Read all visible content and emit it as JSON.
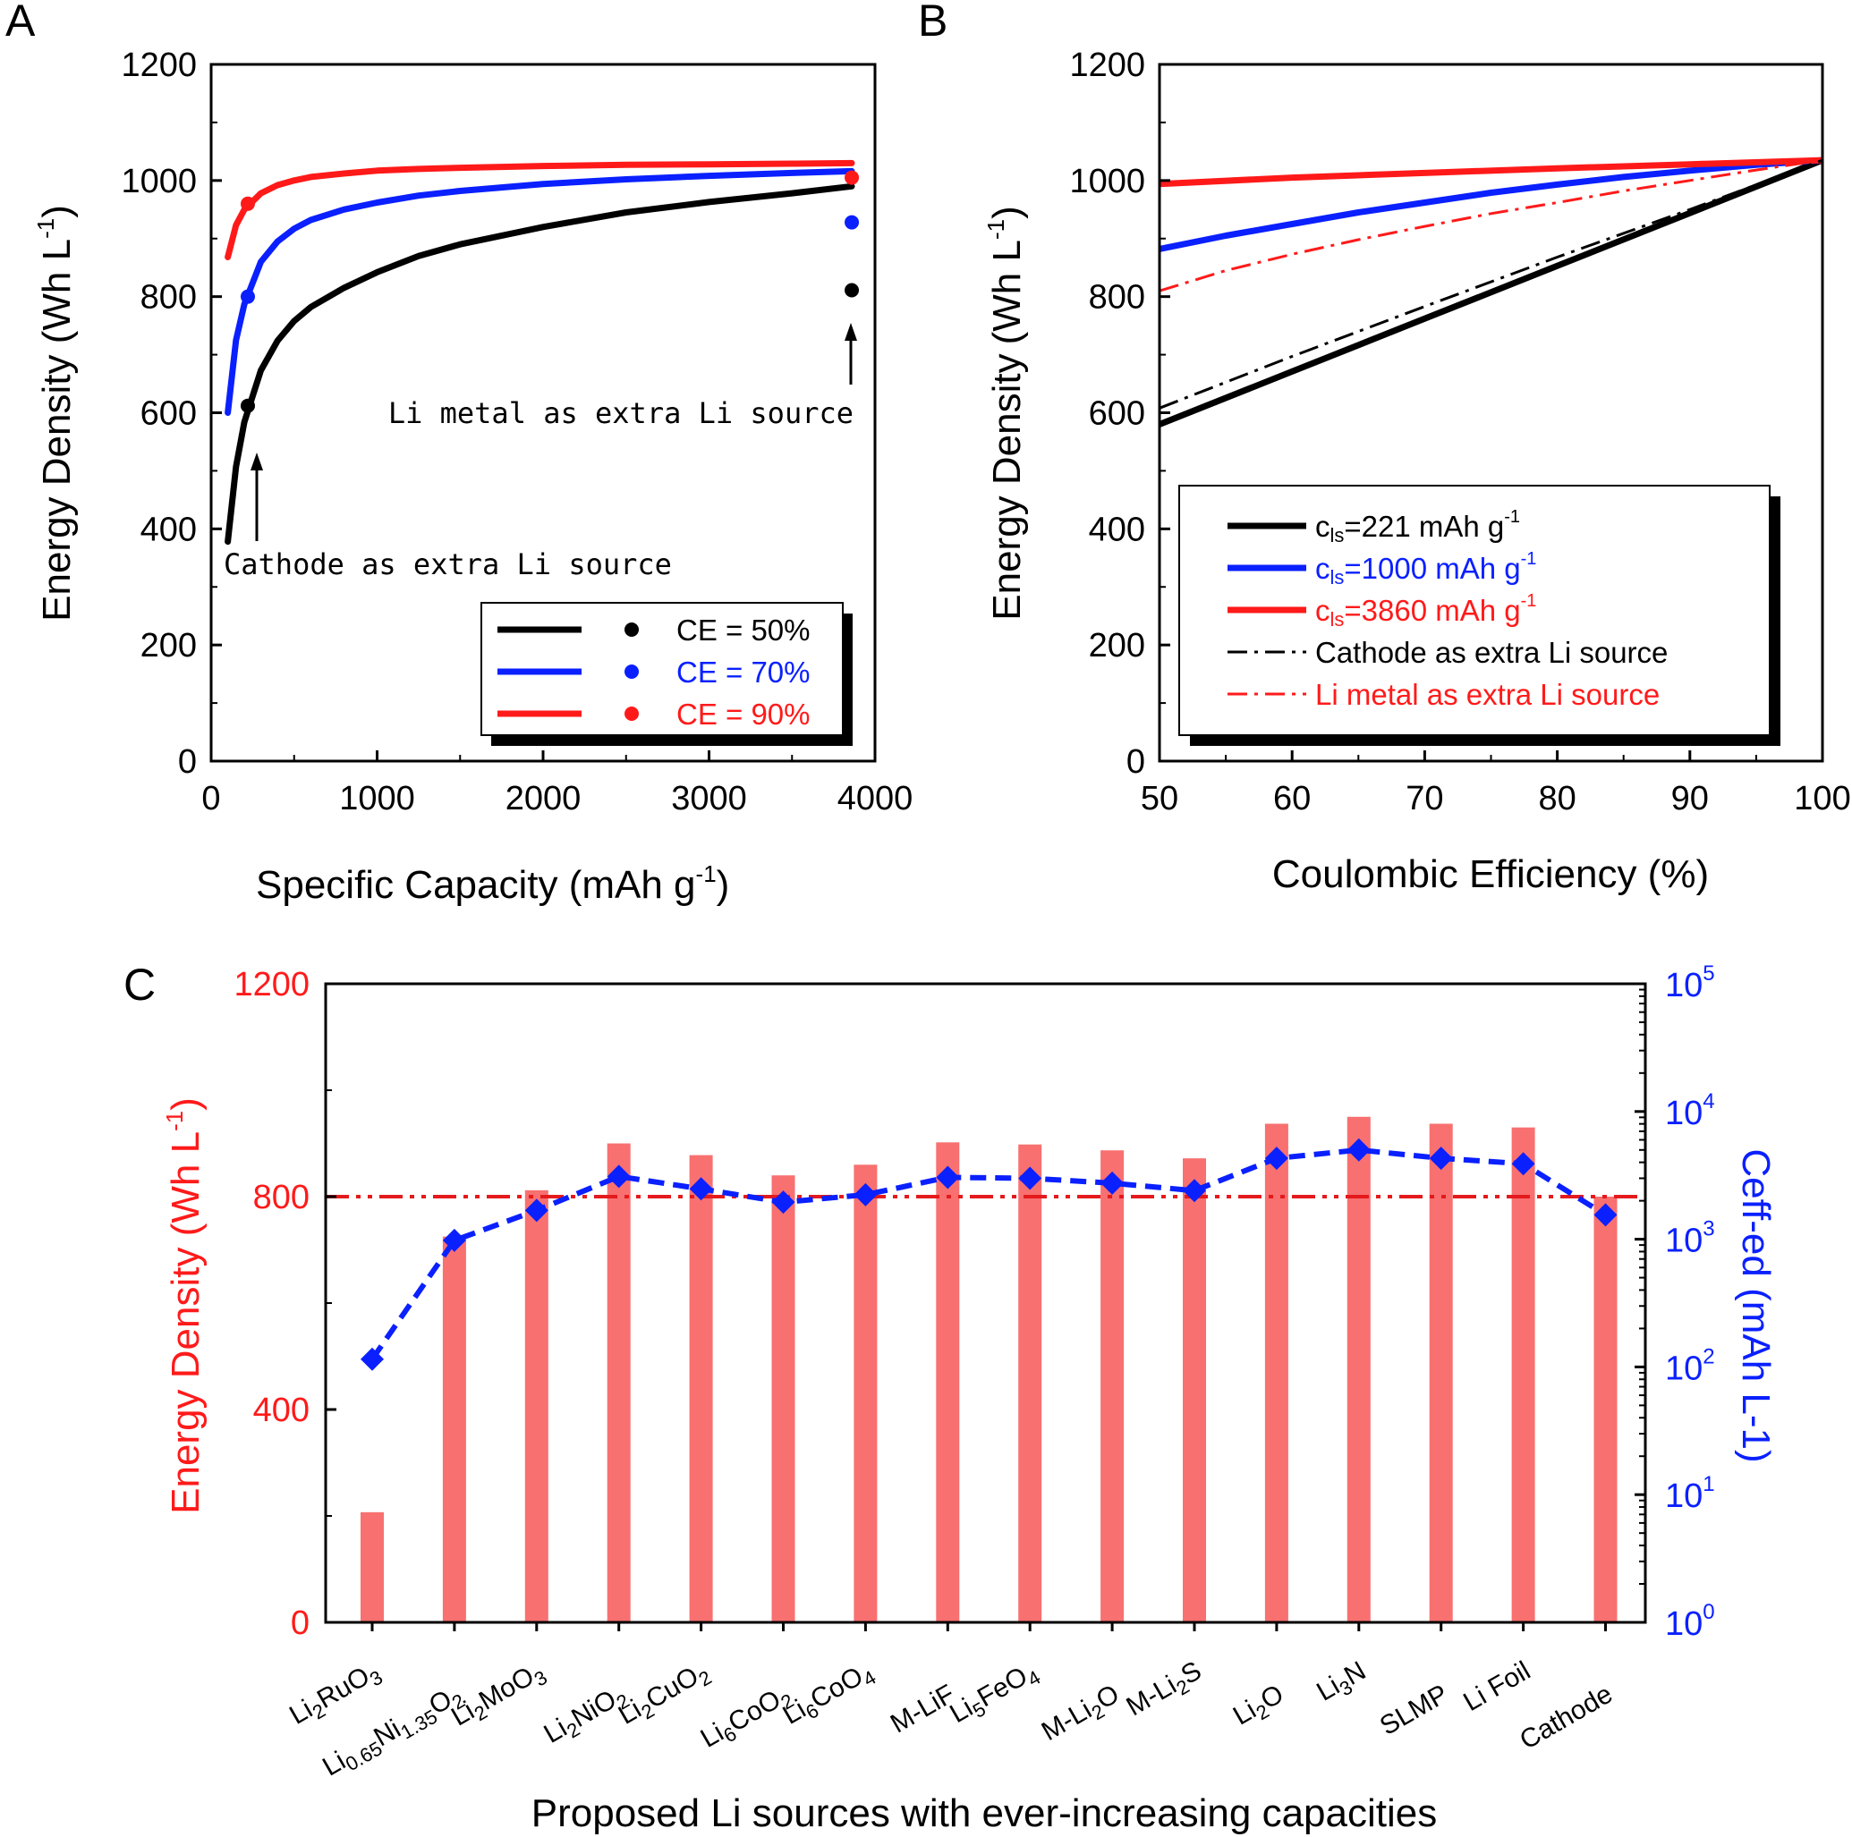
{
  "colors": {
    "black": "#000000",
    "blue": "#0a20ff",
    "red": "#ff1a1a",
    "bar": "#f87070",
    "refline": "#e41a1c"
  },
  "chart_data": [
    {
      "panel": "A",
      "type": "line",
      "xlabel": "Specific Capacity (mAh g",
      "xlabel_sup": "-1",
      "xlabel_end": ")",
      "ylabel": "Energy Density (Wh L",
      "ylabel_sup": "-1",
      "ylabel_end": ")",
      "xlim": [
        0,
        4000
      ],
      "ylim": [
        0,
        1200
      ],
      "xticks": [
        0,
        1000,
        2000,
        3000,
        4000
      ],
      "yticks": [
        0,
        200,
        400,
        600,
        800,
        1000,
        1200
      ],
      "series": [
        {
          "name": "CE = 50%",
          "color_key": "black",
          "x": [
            100,
            150,
            200,
            300,
            400,
            500,
            600,
            800,
            1000,
            1250,
            1500,
            2000,
            2500,
            3000,
            3500,
            3860
          ],
          "y": [
            378,
            507,
            584,
            673,
            724,
            758,
            782,
            815,
            842,
            870,
            890,
            920,
            945,
            963,
            978,
            990
          ],
          "points": [
            {
              "x": 221,
              "y": 612
            },
            {
              "x": 3860,
              "y": 811
            }
          ]
        },
        {
          "name": "CE = 70%",
          "color_key": "blue",
          "x": [
            100,
            150,
            200,
            300,
            400,
            500,
            600,
            800,
            1000,
            1250,
            1500,
            2000,
            2500,
            3000,
            3500,
            3860
          ],
          "y": [
            600,
            725,
            787,
            860,
            895,
            917,
            932,
            950,
            962,
            974,
            982,
            994,
            1002,
            1008,
            1013,
            1016
          ],
          "points": [
            {
              "x": 221,
              "y": 800
            },
            {
              "x": 3860,
              "y": 928
            }
          ]
        },
        {
          "name": "CE = 90%",
          "color_key": "red",
          "x": [
            100,
            150,
            200,
            300,
            400,
            500,
            600,
            800,
            1000,
            1250,
            1500,
            2000,
            2500,
            3000,
            3500,
            3860
          ],
          "y": [
            868,
            923,
            950,
            978,
            992,
            1000,
            1006,
            1012,
            1017,
            1020,
            1022,
            1025,
            1027,
            1028,
            1029,
            1030
          ],
          "points": [
            {
              "x": 221,
              "y": 960
            },
            {
              "x": 3860,
              "y": 1005
            }
          ]
        }
      ],
      "annotations": [
        "Cathode as extra Li source",
        "Li metal as extra Li source"
      ],
      "legend_position": "bottom-right"
    },
    {
      "panel": "B",
      "type": "line",
      "xlabel": "Coulombic Efficiency (%)",
      "ylabel": "Energy Density",
      "xlim": [
        50,
        100
      ],
      "ylim": [
        0,
        1200
      ],
      "xticks": [
        50,
        60,
        70,
        80,
        90,
        100
      ],
      "yticks": [
        0,
        200,
        400,
        600,
        800,
        1000,
        1200
      ],
      "series": [
        {
          "name_main": "c",
          "name_sub": "ls",
          "name_rest": "=221 mAh g",
          "name_sup": "-1",
          "color_key": "black",
          "style": "solid",
          "x": [
            50,
            60,
            70,
            80,
            90,
            100
          ],
          "y": [
            580,
            671,
            762,
            853,
            944,
            1035
          ]
        },
        {
          "name_main": "c",
          "name_sub": "ls",
          "name_rest": "=1000 mAh g",
          "name_sup": "-1",
          "color_key": "blue",
          "style": "solid",
          "x": [
            50,
            55,
            60,
            65,
            70,
            75,
            80,
            85,
            90,
            95,
            100
          ],
          "y": [
            882,
            905,
            925,
            945,
            962,
            979,
            993,
            1006,
            1017,
            1027,
            1035
          ]
        },
        {
          "name_main": "c",
          "name_sub": "ls",
          "name_rest": "=3860 mAh g",
          "name_sup": "-1",
          "color_key": "red",
          "style": "solid",
          "x": [
            50,
            60,
            70,
            80,
            90,
            100
          ],
          "y": [
            994,
            1005,
            1013,
            1021,
            1028,
            1035
          ]
        },
        {
          "name": "Cathode as extra Li source",
          "color_key": "black",
          "style": "dashdot",
          "x": [
            50,
            60,
            70,
            80,
            90,
            100
          ],
          "y": [
            608,
            697,
            783,
            868,
            950,
            1035
          ]
        },
        {
          "name": "Li metal as extra Li source",
          "color_key": "red",
          "style": "dashdot",
          "x": [
            50,
            55,
            60,
            65,
            70,
            75,
            80,
            85,
            90,
            95,
            100
          ],
          "y": [
            810,
            845,
            873,
            898,
            921,
            943,
            962,
            982,
            1000,
            1018,
            1035
          ]
        }
      ],
      "legend_position": "lower-middle"
    },
    {
      "panel": "C",
      "type": "bar",
      "xlabel": "Proposed Li sources with ever-increasing capacities",
      "ylabel": "Energy Density (Wh L",
      "ylabel_sup": "-1",
      "ylabel_end": ")",
      "ylabel_right": "Ceff-ed (mAh L-1)",
      "ylim": [
        0,
        1200
      ],
      "yticks": [
        0,
        400,
        800,
        1200
      ],
      "y2lim_log": [
        1,
        100000
      ],
      "y2ticks": [
        {
          "base": "10",
          "exp": "0"
        },
        {
          "base": "10",
          "exp": "1"
        },
        {
          "base": "10",
          "exp": "2"
        },
        {
          "base": "10",
          "exp": "3"
        },
        {
          "base": "10",
          "exp": "4"
        },
        {
          "base": "10",
          "exp": "5"
        }
      ],
      "reference_line": 800,
      "categories": [
        {
          "parts": [
            [
              "Li",
              ""
            ],
            [
              "2",
              "sub"
            ],
            [
              "RuO",
              ""
            ],
            [
              "3",
              "sub"
            ]
          ]
        },
        {
          "parts": [
            [
              "Li",
              ""
            ],
            [
              "0.65",
              "sub"
            ],
            [
              "Ni",
              ""
            ],
            [
              "1.35",
              "sub"
            ],
            [
              "O",
              ""
            ],
            [
              "2",
              "sub"
            ]
          ]
        },
        {
          "parts": [
            [
              "Li",
              ""
            ],
            [
              "2",
              "sub"
            ],
            [
              "MoO",
              ""
            ],
            [
              "3",
              "sub"
            ]
          ]
        },
        {
          "parts": [
            [
              "Li",
              ""
            ],
            [
              "2",
              "sub"
            ],
            [
              "NiO",
              ""
            ],
            [
              "2",
              "sub"
            ]
          ]
        },
        {
          "parts": [
            [
              "Li",
              ""
            ],
            [
              "2",
              "sub"
            ],
            [
              "CuO",
              ""
            ],
            [
              "2",
              "sub"
            ]
          ]
        },
        {
          "parts": [
            [
              "Li",
              ""
            ],
            [
              "6",
              "sub"
            ],
            [
              "CoO",
              ""
            ],
            [
              "2",
              "sub"
            ]
          ]
        },
        {
          "parts": [
            [
              "Li",
              ""
            ],
            [
              "6",
              "sub"
            ],
            [
              "CoO",
              ""
            ],
            [
              "4",
              "sub"
            ]
          ]
        },
        {
          "parts": [
            [
              "M-LiF",
              ""
            ]
          ]
        },
        {
          "parts": [
            [
              "Li",
              ""
            ],
            [
              "5",
              "sub"
            ],
            [
              "FeO",
              ""
            ],
            [
              "4",
              "sub"
            ]
          ]
        },
        {
          "parts": [
            [
              "M-Li",
              ""
            ],
            [
              "2",
              "sub"
            ],
            [
              "O",
              ""
            ]
          ]
        },
        {
          "parts": [
            [
              "M-Li",
              ""
            ],
            [
              "2",
              "sub"
            ],
            [
              "S",
              ""
            ]
          ]
        },
        {
          "parts": [
            [
              "Li",
              ""
            ],
            [
              "2",
              "sub"
            ],
            [
              "O",
              ""
            ]
          ]
        },
        {
          "parts": [
            [
              "Li",
              ""
            ],
            [
              "3",
              "sub"
            ],
            [
              "N",
              ""
            ]
          ]
        },
        {
          "parts": [
            [
              "SLMP",
              ""
            ]
          ]
        },
        {
          "parts": [
            [
              "Li Foil",
              ""
            ]
          ]
        },
        {
          "parts": [
            [
              "Cathode",
              ""
            ]
          ]
        }
      ],
      "values": [
        207,
        725,
        812,
        900,
        878,
        840,
        860,
        902,
        898,
        887,
        872,
        937,
        950,
        937,
        930,
        800
      ],
      "ceff": [
        115,
        980,
        1680,
        3100,
        2480,
        1950,
        2230,
        3050,
        3000,
        2750,
        2400,
        4300,
        5000,
        4300,
        3900,
        1550
      ]
    }
  ]
}
